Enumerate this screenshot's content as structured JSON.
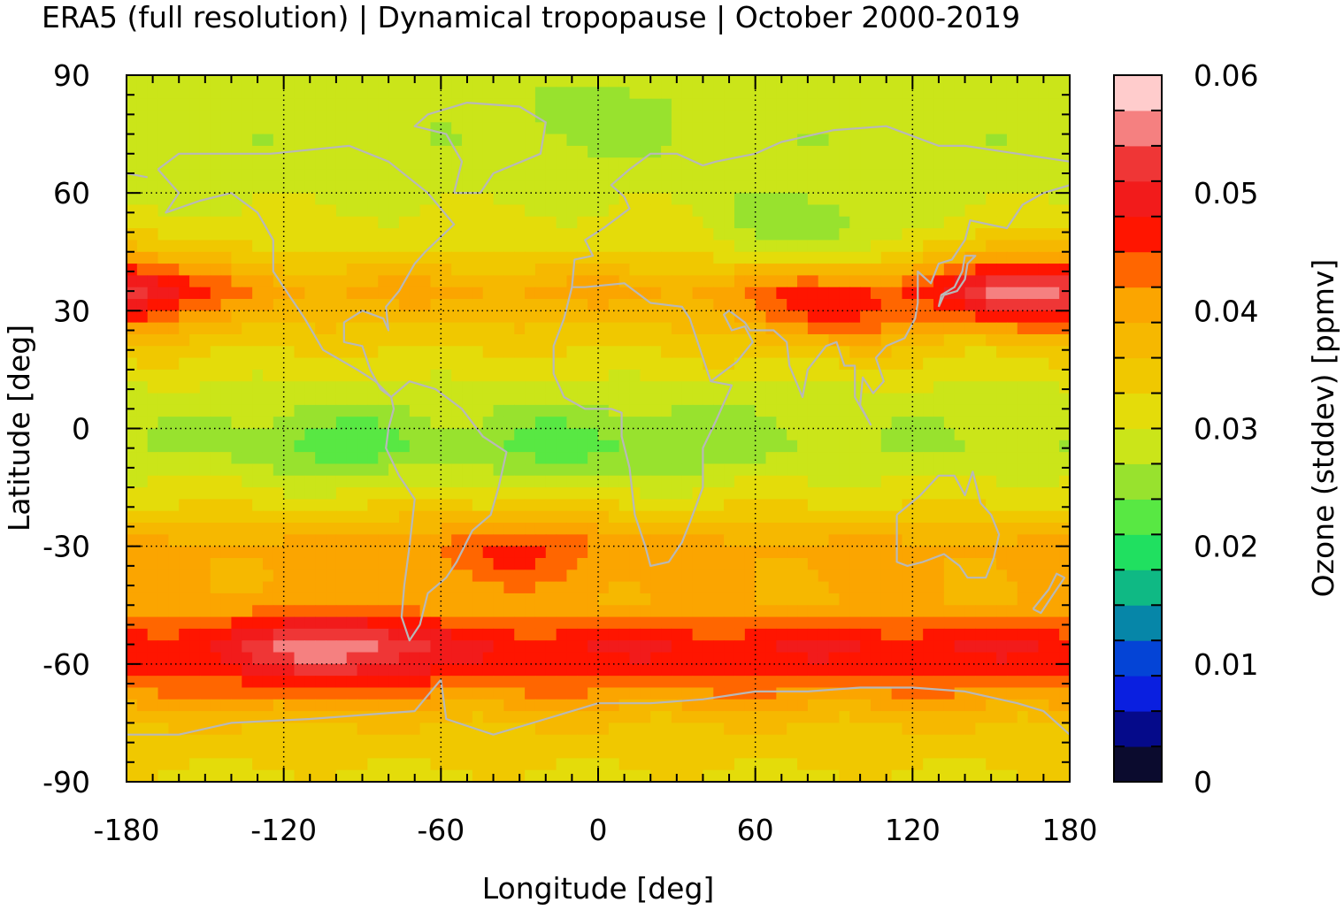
{
  "title": "ERA5 (full resolution) | Dynamical tropopause | October 2000-2019",
  "chart_data": {
    "type": "heatmap",
    "title": "ERA5 (full resolution) | Dynamical tropopause | October 2000-2019",
    "xlabel": "Longitude [deg]",
    "ylabel": "Latitude [deg]",
    "xlim": [
      -180,
      180
    ],
    "ylim": [
      -90,
      90
    ],
    "xticks": [
      "-180",
      "-120",
      "-60",
      "0",
      "60",
      "120",
      "180"
    ],
    "yticks": [
      "90",
      "60",
      "30",
      "0",
      "-30",
      "-60",
      "-90"
    ],
    "grid": true,
    "colorbar": {
      "label": "Ozone (stddev) [ppmv]",
      "ticks": [
        "0.06",
        "0.05",
        "0.04",
        "0.03",
        "0.02",
        "0.01",
        "0"
      ],
      "min": 0,
      "max": 0.06,
      "levels": [
        {
          "from": 0.0,
          "to": 0.003,
          "color": "#0b0b2e"
        },
        {
          "from": 0.003,
          "to": 0.006,
          "color": "#050a8a"
        },
        {
          "from": 0.006,
          "to": 0.009,
          "color": "#0a1fe0"
        },
        {
          "from": 0.009,
          "to": 0.012,
          "color": "#0444d6"
        },
        {
          "from": 0.012,
          "to": 0.015,
          "color": "#0686a8"
        },
        {
          "from": 0.015,
          "to": 0.018,
          "color": "#0fb984"
        },
        {
          "from": 0.018,
          "to": 0.021,
          "color": "#20e060"
        },
        {
          "from": 0.021,
          "to": 0.024,
          "color": "#58e843"
        },
        {
          "from": 0.024,
          "to": 0.027,
          "color": "#98e22e"
        },
        {
          "from": 0.027,
          "to": 0.03,
          "color": "#cbe519"
        },
        {
          "from": 0.03,
          "to": 0.033,
          "color": "#e4dc0a"
        },
        {
          "from": 0.033,
          "to": 0.036,
          "color": "#f0c800"
        },
        {
          "from": 0.036,
          "to": 0.039,
          "color": "#f6b800"
        },
        {
          "from": 0.039,
          "to": 0.042,
          "color": "#fba500"
        },
        {
          "from": 0.042,
          "to": 0.045,
          "color": "#ff6600"
        },
        {
          "from": 0.045,
          "to": 0.048,
          "color": "#ff1500"
        },
        {
          "from": 0.048,
          "to": 0.051,
          "color": "#f21b1b"
        },
        {
          "from": 0.051,
          "to": 0.054,
          "color": "#ef3636"
        },
        {
          "from": 0.054,
          "to": 0.057,
          "color": "#f58080"
        },
        {
          "from": 0.057,
          "to": 0.06,
          "color": "#ffcccc"
        }
      ]
    },
    "zonal_profile": [
      {
        "lat": 90,
        "value": 0.029
      },
      {
        "lat": 75,
        "value": 0.028
      },
      {
        "lat": 60,
        "value": 0.029
      },
      {
        "lat": 45,
        "value": 0.033
      },
      {
        "lat": 35,
        "value": 0.04
      },
      {
        "lat": 20,
        "value": 0.033
      },
      {
        "lat": 5,
        "value": 0.028
      },
      {
        "lat": -5,
        "value": 0.027
      },
      {
        "lat": -20,
        "value": 0.033
      },
      {
        "lat": -30,
        "value": 0.04
      },
      {
        "lat": -45,
        "value": 0.039
      },
      {
        "lat": -55,
        "value": 0.048
      },
      {
        "lat": -62,
        "value": 0.046
      },
      {
        "lat": -75,
        "value": 0.036
      },
      {
        "lat": -90,
        "value": 0.032
      }
    ],
    "regional_maxima": [
      {
        "lon": -100,
        "lat": -55,
        "value": 0.057
      },
      {
        "lon": 160,
        "lat": 35,
        "value": 0.054
      },
      {
        "lon": 90,
        "lat": 30,
        "value": 0.047
      },
      {
        "lon": -170,
        "lat": 35,
        "value": 0.046
      },
      {
        "lon": -30,
        "lat": -30,
        "value": 0.046
      }
    ],
    "regional_minima": [
      {
        "lon": -100,
        "lat": -5,
        "value": 0.022
      },
      {
        "lon": -20,
        "lat": -5,
        "value": 0.023
      },
      {
        "lon": 30,
        "lat": -5,
        "value": 0.024
      },
      {
        "lon": 80,
        "lat": 50,
        "value": 0.025
      },
      {
        "lon": 0,
        "lat": 80,
        "value": 0.025
      }
    ]
  }
}
